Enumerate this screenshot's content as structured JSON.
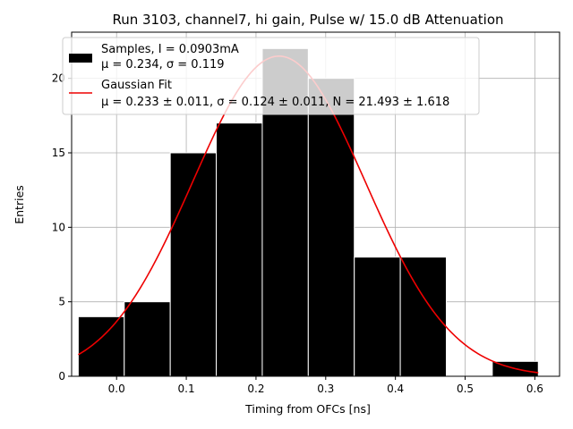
{
  "chart_data": {
    "type": "bar",
    "title": "Run 3103, channel7, hi gain, Pulse w/ 15.0 dB Attenuation",
    "xlabel": "Timing from OFCs [ns]",
    "ylabel": "Entries",
    "xlim": [
      -0.0645,
      0.6355
    ],
    "ylim": [
      0,
      23.1
    ],
    "xticks": [
      0.0,
      0.1,
      0.2,
      0.3,
      0.4,
      0.5,
      0.6
    ],
    "xtick_labels": [
      "0.0",
      "0.1",
      "0.2",
      "0.3",
      "0.4",
      "0.5",
      "0.6"
    ],
    "yticks": [
      0,
      5,
      10,
      15,
      20
    ],
    "ytick_labels": [
      "0",
      "5",
      "10",
      "15",
      "20"
    ],
    "grid": true,
    "legend_position": "top-left",
    "bins": [
      {
        "x0": -0.055,
        "x1": 0.011,
        "count": 4
      },
      {
        "x0": 0.011,
        "x1": 0.077,
        "count": 5
      },
      {
        "x0": 0.077,
        "x1": 0.143,
        "count": 15
      },
      {
        "x0": 0.143,
        "x1": 0.209,
        "count": 17
      },
      {
        "x0": 0.209,
        "x1": 0.275,
        "count": 22
      },
      {
        "x0": 0.275,
        "x1": 0.341,
        "count": 20
      },
      {
        "x0": 0.341,
        "x1": 0.407,
        "count": 8
      },
      {
        "x0": 0.407,
        "x1": 0.473,
        "count": 8
      },
      {
        "x0": 0.473,
        "x1": 0.539,
        "count": 0
      },
      {
        "x0": 0.539,
        "x1": 0.605,
        "count": 1
      }
    ],
    "fit": {
      "type": "gaussian",
      "mu": 0.233,
      "sigma": 0.124,
      "N": 21.493,
      "x_range": [
        -0.055,
        0.605
      ]
    },
    "legend": [
      {
        "kind": "histogram",
        "color": "#000000",
        "line1": "Samples, I = 0.0903mA",
        "line2": "μ = 0.234, σ = 0.119"
      },
      {
        "kind": "line",
        "color": "#ee0000",
        "line1": "Gaussian Fit",
        "line2": "μ = 0.233 ± 0.011, σ = 0.124 ± 0.011, N = 21.493 ± 1.618"
      }
    ]
  }
}
